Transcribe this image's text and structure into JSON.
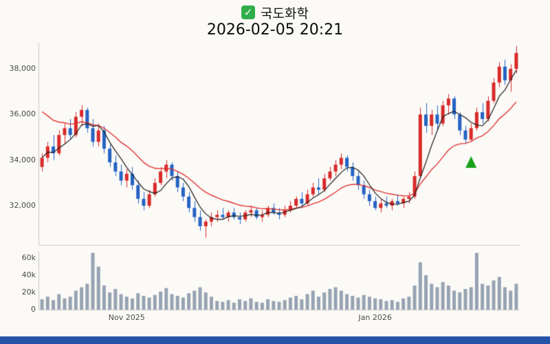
{
  "header": {
    "checkbox_glyph": "✓",
    "title": "국도화학",
    "datetime": "2026-02-05 20:21"
  },
  "taskbar": {
    "color": "#2553a8"
  },
  "chart_data": {
    "type": "candlestick",
    "title": "국도화학",
    "subtitle": "2026-02-05 20:21",
    "legend_position": "none",
    "grid": false,
    "y_ticks": [
      "38,000",
      "36,000",
      "34,000",
      "32,000"
    ],
    "y_tick_values": [
      38000,
      36000,
      34000,
      32000
    ],
    "price_range": [
      30280,
      39150
    ],
    "volume_ticks": [
      "60k",
      "40k",
      "20k",
      "0"
    ],
    "volume_tick_values": [
      60000,
      40000,
      20000,
      0
    ],
    "volume_max": 68000,
    "x_ticks": [
      {
        "label": "Nov 2025",
        "index": 15
      },
      {
        "label": "Jan 2026",
        "index": 59
      }
    ],
    "candle_up_color": "#d82a2a",
    "candle_down_color": "#2563c4",
    "volume_bar_color": "#97a3b2",
    "axis_line_color": "#c9c9c9",
    "moving_averages": {
      "short": {
        "type": "sma",
        "period": 5,
        "color": "#1a1a1a"
      },
      "long": {
        "type": "ema",
        "alpha": 0.12,
        "seed": 36400,
        "color": "#e03131"
      }
    },
    "marker": {
      "type": "up-triangle",
      "index": 76,
      "price": 33900,
      "color": "#18a018"
    },
    "candles": [
      [
        33700,
        34300,
        33500,
        34100,
        12000
      ],
      [
        34100,
        34800,
        33900,
        34600,
        15000
      ],
      [
        34600,
        35100,
        34000,
        34300,
        11000
      ],
      [
        34300,
        35300,
        34200,
        35100,
        18000
      ],
      [
        35100,
        35600,
        34700,
        35400,
        13000
      ],
      [
        35400,
        35800,
        34900,
        35100,
        15000
      ],
      [
        35100,
        36100,
        35000,
        35900,
        22000
      ],
      [
        35900,
        36400,
        35500,
        36200,
        26000
      ],
      [
        36200,
        36300,
        35200,
        35400,
        30000
      ],
      [
        35400,
        35800,
        34600,
        34800,
        66000
      ],
      [
        34800,
        35600,
        34600,
        35300,
        50000
      ],
      [
        35300,
        35500,
        34300,
        34500,
        28000
      ],
      [
        34500,
        34700,
        33700,
        33900,
        20000
      ],
      [
        33900,
        34200,
        33300,
        33500,
        24000
      ],
      [
        33500,
        33800,
        32900,
        33100,
        18000
      ],
      [
        33100,
        33600,
        32800,
        33400,
        15000
      ],
      [
        33400,
        33700,
        32700,
        32900,
        13000
      ],
      [
        32900,
        33100,
        32100,
        32300,
        19000
      ],
      [
        32300,
        32600,
        31800,
        32000,
        16000
      ],
      [
        32000,
        32700,
        31900,
        32500,
        14000
      ],
      [
        32500,
        33200,
        32400,
        33000,
        17000
      ],
      [
        33000,
        33700,
        32900,
        33500,
        21000
      ],
      [
        33500,
        34000,
        33200,
        33800,
        25000
      ],
      [
        33800,
        33900,
        33100,
        33300,
        18000
      ],
      [
        33300,
        33500,
        32600,
        32800,
        16000
      ],
      [
        32800,
        33000,
        32200,
        32400,
        14000
      ],
      [
        32400,
        32600,
        31700,
        31900,
        19000
      ],
      [
        31900,
        32200,
        31300,
        31500,
        22000
      ],
      [
        31500,
        31800,
        30900,
        31100,
        26000
      ],
      [
        31100,
        31400,
        30600,
        31300,
        20000
      ],
      [
        31300,
        31700,
        31100,
        31500,
        15000
      ],
      [
        31500,
        31800,
        31300,
        31600,
        10000
      ],
      [
        31600,
        31900,
        31400,
        31500,
        9000
      ],
      [
        31500,
        31800,
        31300,
        31700,
        11000
      ],
      [
        31700,
        31900,
        31400,
        31500,
        8000
      ],
      [
        31500,
        31700,
        31200,
        31400,
        12000
      ],
      [
        31400,
        31800,
        31300,
        31700,
        10000
      ],
      [
        31700,
        32000,
        31500,
        31800,
        13000
      ],
      [
        31800,
        31900,
        31400,
        31500,
        9000
      ],
      [
        31500,
        31800,
        31300,
        31600,
        8000
      ],
      [
        31600,
        32000,
        31500,
        31900,
        12000
      ],
      [
        31900,
        32100,
        31600,
        31700,
        10000
      ],
      [
        31700,
        31900,
        31400,
        31600,
        9000
      ],
      [
        31600,
        32000,
        31500,
        31800,
        11000
      ],
      [
        31800,
        32200,
        31700,
        32000,
        14000
      ],
      [
        32000,
        32400,
        31900,
        32300,
        16000
      ],
      [
        32300,
        32600,
        32000,
        32100,
        12000
      ],
      [
        32100,
        32700,
        32000,
        32500,
        18000
      ],
      [
        32500,
        33000,
        32400,
        32800,
        22000
      ],
      [
        32800,
        33200,
        32500,
        32700,
        15000
      ],
      [
        32700,
        33400,
        32600,
        33200,
        20000
      ],
      [
        33200,
        33700,
        33100,
        33500,
        24000
      ],
      [
        33500,
        34000,
        33300,
        33800,
        26000
      ],
      [
        33800,
        34300,
        33600,
        34100,
        22000
      ],
      [
        34100,
        34200,
        33500,
        33700,
        18000
      ],
      [
        33700,
        33900,
        33100,
        33300,
        16000
      ],
      [
        33300,
        33500,
        32700,
        32900,
        14000
      ],
      [
        32900,
        33100,
        32300,
        32500,
        17000
      ],
      [
        32500,
        32700,
        32000,
        32200,
        15000
      ],
      [
        32200,
        32400,
        31800,
        31900,
        13000
      ],
      [
        31900,
        32300,
        31700,
        32100,
        12000
      ],
      [
        32100,
        32400,
        31900,
        32000,
        10000
      ],
      [
        32000,
        32300,
        31800,
        32200,
        11000
      ],
      [
        32200,
        32500,
        32000,
        32100,
        9000
      ],
      [
        32100,
        32400,
        31900,
        32300,
        13000
      ],
      [
        32300,
        32600,
        32100,
        32400,
        15000
      ],
      [
        32400,
        33500,
        32300,
        33300,
        28000
      ],
      [
        33300,
        36300,
        33200,
        36000,
        55000
      ],
      [
        36000,
        36500,
        35200,
        35500,
        40000
      ],
      [
        35500,
        36200,
        35100,
        36000,
        30000
      ],
      [
        36000,
        36400,
        35300,
        35600,
        26000
      ],
      [
        35600,
        36600,
        35500,
        36400,
        32000
      ],
      [
        36400,
        36900,
        36000,
        36700,
        28000
      ],
      [
        36700,
        36800,
        35800,
        36000,
        22000
      ],
      [
        36000,
        36100,
        35100,
        35300,
        20000
      ],
      [
        35300,
        35500,
        34700,
        34900,
        24000
      ],
      [
        34900,
        35600,
        34800,
        35400,
        26000
      ],
      [
        35400,
        36300,
        35300,
        36100,
        66000
      ],
      [
        36100,
        36500,
        35600,
        35800,
        30000
      ],
      [
        35800,
        36800,
        35700,
        36600,
        28000
      ],
      [
        36600,
        37600,
        36500,
        37400,
        34000
      ],
      [
        37400,
        38300,
        37200,
        38100,
        38000
      ],
      [
        38100,
        38400,
        37300,
        37500,
        26000
      ],
      [
        37500,
        38200,
        37000,
        38000,
        22000
      ],
      [
        38000,
        39000,
        37800,
        38700,
        30000
      ]
    ]
  }
}
